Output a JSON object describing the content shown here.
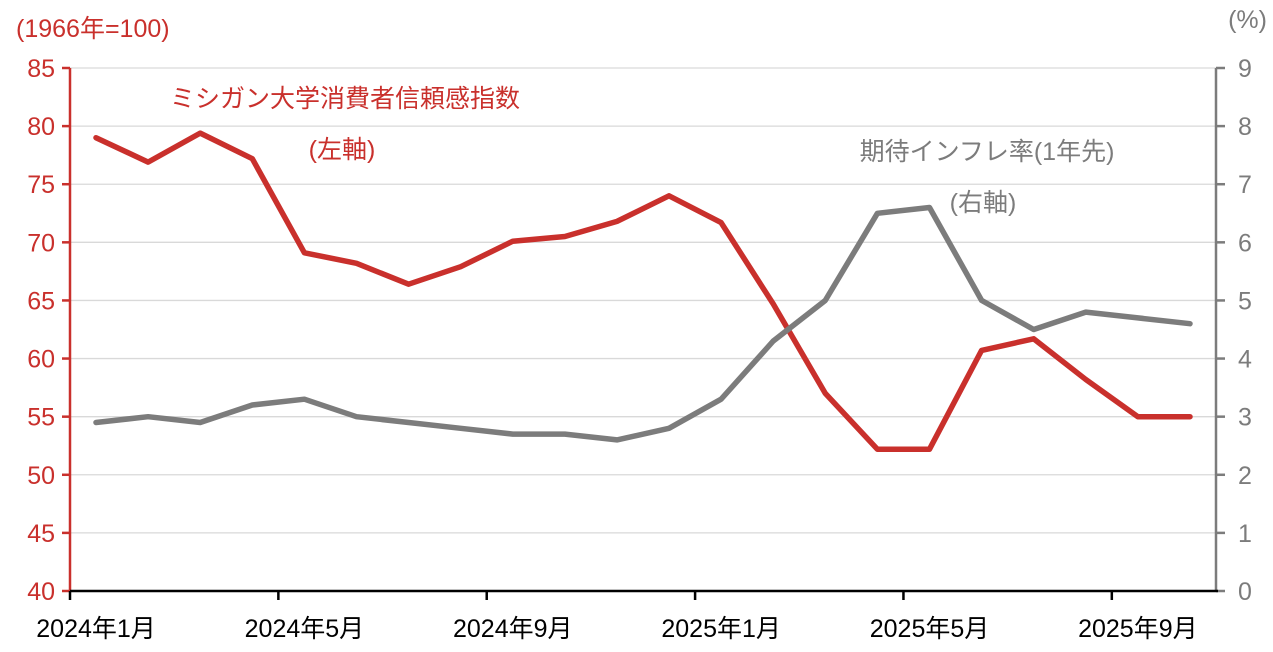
{
  "labels": {
    "left_unit": "(1966年=100)",
    "right_unit": "(%)",
    "series1_line1": "ミシガン大学消費者信頼感指数",
    "series1_line2": "(左軸)",
    "series2_line1": "期待インフレ率(1年先)",
    "series2_line2": "(右軸)"
  },
  "colors": {
    "red": "#c9302c",
    "gray": "#7c7c7c",
    "grid": "#d9d9d9",
    "axis_black": "#000000",
    "x_text": "#000000"
  },
  "chart_data": {
    "type": "line",
    "title": "",
    "x": [
      "2024-01",
      "2024-02",
      "2024-03",
      "2024-04",
      "2024-05",
      "2024-06",
      "2024-07",
      "2024-08",
      "2024-09",
      "2024-10",
      "2024-11",
      "2024-12",
      "2025-01",
      "2025-02",
      "2025-03",
      "2025-04",
      "2025-05",
      "2025-06",
      "2025-07",
      "2025-08",
      "2025-09",
      "2025-10"
    ],
    "x_axis": {
      "tick_labels": [
        "2024年1月",
        "2024年5月",
        "2024年9月",
        "2025年1月",
        "2025年5月",
        "2025年9月"
      ],
      "tick_month_indices": [
        0,
        4,
        8,
        12,
        16,
        20
      ]
    },
    "left_axis": {
      "unit": "(1966年=100)",
      "min": 40,
      "max": 85,
      "ticks": [
        85,
        80,
        75,
        70,
        65,
        60,
        55,
        50,
        45,
        40
      ]
    },
    "right_axis": {
      "unit": "(%)",
      "min": 0,
      "max": 9,
      "ticks": [
        9,
        8,
        7,
        6,
        5,
        4,
        3,
        2,
        1,
        0
      ]
    },
    "grid": true,
    "legend": "inline-annotations",
    "series": [
      {
        "name": "ミシガン大学消費者信頼感指数(左軸)",
        "axis": "left",
        "color": "#c9302c",
        "values": [
          79.0,
          76.9,
          79.4,
          77.2,
          69.1,
          68.2,
          66.4,
          67.9,
          70.1,
          70.5,
          71.8,
          74.0,
          71.7,
          64.7,
          57.0,
          52.2,
          52.2,
          60.7,
          61.7,
          58.2,
          55.0,
          55.0
        ]
      },
      {
        "name": "期待インフレ率(1年先)(右軸)",
        "axis": "right",
        "color": "#7c7c7c",
        "values": [
          2.9,
          3.0,
          2.9,
          3.2,
          3.3,
          3.0,
          2.9,
          2.8,
          2.7,
          2.7,
          2.6,
          2.8,
          3.3,
          4.3,
          5.0,
          6.5,
          6.6,
          5.0,
          4.5,
          4.8,
          4.7,
          4.6
        ]
      }
    ]
  }
}
